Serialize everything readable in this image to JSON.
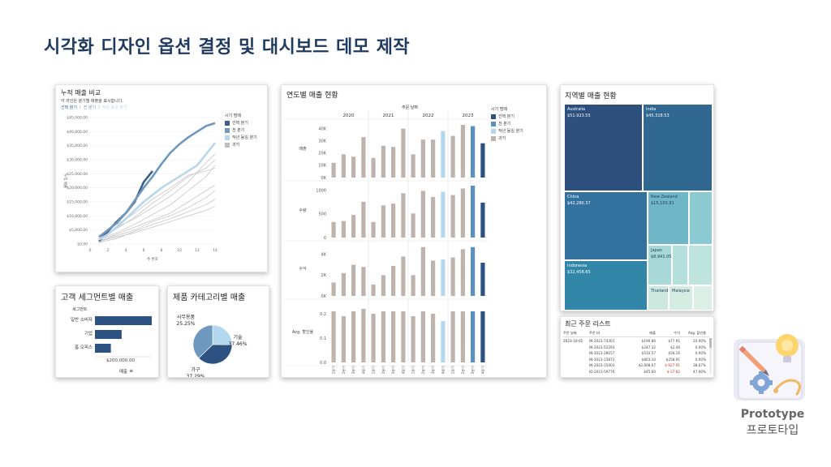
{
  "page": {
    "title": "시각화 디자인 옵션 결정 및 대시보드 데모 제작"
  },
  "cumulative": {
    "title": "누적 매출 비교",
    "subtitle": "각 라인은 분기별 매출을 표시합니다.",
    "tab_selected": "선택 분기",
    "tab_prev": "전 분기",
    "tab_yoy": "작년 동일 분기",
    "legend_title": "시기 범례",
    "legend": [
      {
        "label": "선택 분기",
        "color": "#3d5f85"
      },
      {
        "label": "전 분기",
        "color": "#6e98bd"
      },
      {
        "label": "작년 동일 분기",
        "color": "#b9d6ea"
      },
      {
        "label": "과거",
        "color": "#bdbdbd"
      }
    ],
    "ylabel": "누적 매출",
    "xlabel": "주 번호"
  },
  "yearly": {
    "title": "연도별 매출 현황",
    "header": "주문 날짜",
    "years": [
      "2020",
      "2021",
      "2022",
      "2023"
    ],
    "legend_title": "시기 범례",
    "legend": [
      {
        "label": "선택 분기",
        "color": "#2c5282"
      },
      {
        "label": "전 분기",
        "color": "#5d8fbf"
      },
      {
        "label": "작년 동일 분기",
        "color": "#b3d7ee"
      },
      {
        "label": "과거",
        "color": "#bfb3ad"
      }
    ],
    "x_quarters": [
      "1분기",
      "2분기",
      "3분기",
      "4분기"
    ]
  },
  "region": {
    "title": "지역별 매출 현황",
    "tiles": [
      {
        "name": "Australia",
        "value": "$51,923.55"
      },
      {
        "name": "India",
        "value": "$45,318.53"
      },
      {
        "name": "China",
        "value": "$42,280.37"
      },
      {
        "name": "New Zealand",
        "value": "$15,103.91"
      },
      {
        "name": "Japan",
        "value": "$8,941.05"
      },
      {
        "name": "Indonesia",
        "value": "$32,458.65"
      },
      {
        "name": "Thailand",
        "value": ""
      },
      {
        "name": "Malaysia",
        "value": ""
      }
    ]
  },
  "segment": {
    "title": "고객 세그먼트별 매출",
    "header": "세그먼트",
    "rows": [
      {
        "label": "일반 소비자",
        "value": 1.0
      },
      {
        "label": "기업",
        "value": 0.47
      },
      {
        "label": "홈 오피스",
        "value": 0.28
      }
    ],
    "axis_label": "$200,000.00",
    "footer": "매출"
  },
  "category": {
    "title": "제품 카테고리별 매출",
    "slices": [
      {
        "name": "사무용품",
        "pct": "25.25%"
      },
      {
        "name": "기술",
        "pct": "37.46%"
      },
      {
        "name": "가구",
        "pct": "37.29%"
      }
    ]
  },
  "orders": {
    "title": "최근 주문 리스트",
    "columns": [
      "주문 날짜",
      "주문 Id",
      "매출",
      "수익",
      "Avg. 할인율"
    ],
    "date": "2023-10-01",
    "rows": [
      {
        "id": "IN-2023-74301",
        "sales": "$190.86",
        "profit": "$77.91",
        "discount": "10.00%",
        "neg": false
      },
      {
        "id": "IN-2023-52293",
        "sales": "$247.32",
        "profit": "$2.46",
        "discount": "0.00%",
        "neg": false
      },
      {
        "id": "IN-2023-28157",
        "sales": "$510.57",
        "profit": "$56.16",
        "discount": "0.00%",
        "neg": false
      },
      {
        "id": "IN-2023-15872",
        "sales": "$803.10",
        "profit": "$258.91",
        "discount": "0.00%",
        "neg": false
      },
      {
        "id": "IN-2023-15403",
        "sales": "$2,608.07",
        "profit": "$-927.91",
        "discount": "38.67%",
        "neg": true
      },
      {
        "id": "ID-2023-59776",
        "sales": "$45.60",
        "profit": "$-37.82",
        "discount": "47.00%",
        "neg": true
      }
    ]
  },
  "proto": {
    "en": "Prototype",
    "ko": "프로토타입"
  },
  "chart_data": [
    {
      "type": "line",
      "title": "누적 매출 비교",
      "xlabel": "주 번호",
      "ylabel": "누적 매출",
      "xlim": [
        0,
        14
      ],
      "ylim": [
        0,
        45000
      ],
      "x_ticks": [
        "0",
        "2",
        "4",
        "6",
        "8",
        "10",
        "12",
        "14"
      ],
      "y_ticks": [
        "$0.00",
        "$5,000.00",
        "$10,000.00",
        "$15,000.00",
        "$20,000.00",
        "$25,000.00",
        "$30,000.00",
        "$35,000.00",
        "$40,000.00",
        "$45,000.00"
      ],
      "series": [
        {
          "name": "선택 분기",
          "x": [
            1,
            2,
            3,
            4,
            5,
            6,
            7
          ],
          "y": [
            1000,
            4500,
            8000,
            11000,
            15000,
            22000,
            26000
          ]
        },
        {
          "name": "전 분기",
          "x": [
            1,
            2,
            3,
            4,
            5,
            6,
            7,
            8,
            9,
            10,
            11,
            12,
            13,
            14
          ],
          "y": [
            2500,
            5000,
            7500,
            11000,
            15500,
            20000,
            24000,
            28500,
            32500,
            35500,
            38000,
            40000,
            42000,
            43000
          ]
        },
        {
          "name": "작년 동일 분기",
          "x": [
            1,
            2,
            3,
            4,
            5,
            6,
            7,
            8,
            9,
            10,
            11,
            12,
            13,
            14
          ],
          "y": [
            1500,
            3500,
            6000,
            9000,
            12000,
            15000,
            17500,
            20000,
            22000,
            24000,
            26000,
            28000,
            32000,
            36000
          ]
        },
        {
          "name": "과거",
          "x": [
            1,
            3,
            5,
            7,
            9,
            11,
            13,
            14
          ],
          "y": [
            2000,
            6000,
            9000,
            13000,
            17000,
            22000,
            29000,
            32000
          ]
        },
        {
          "name": "과거",
          "x": [
            1,
            3,
            5,
            7,
            9,
            11,
            13,
            14
          ],
          "y": [
            1500,
            4000,
            7000,
            10500,
            14000,
            19000,
            24000,
            28000
          ]
        },
        {
          "name": "과거",
          "x": [
            1,
            3,
            5,
            7,
            9,
            11,
            13,
            14
          ],
          "y": [
            800,
            3500,
            6000,
            8500,
            11000,
            15000,
            19000,
            21000
          ]
        },
        {
          "name": "과거",
          "x": [
            1,
            3,
            5,
            7,
            9,
            11,
            13,
            14
          ],
          "y": [
            2500,
            5500,
            9500,
            14500,
            19000,
            24000,
            27000,
            30000
          ]
        },
        {
          "name": "과거",
          "x": [
            1,
            3,
            5,
            7,
            9,
            11,
            13,
            14
          ],
          "y": [
            500,
            2000,
            4500,
            7000,
            9000,
            11500,
            14000,
            16000
          ]
        },
        {
          "name": "과거",
          "x": [
            1,
            3,
            5,
            7,
            9,
            11,
            13,
            14
          ],
          "y": [
            1200,
            3000,
            5000,
            8000,
            10000,
            13000,
            16500,
            19000
          ]
        },
        {
          "name": "과거",
          "x": [
            1,
            3,
            5,
            7,
            9,
            11,
            13,
            14
          ],
          "y": [
            3000,
            7000,
            11000,
            16000,
            20000,
            24500,
            26000,
            27000
          ]
        },
        {
          "name": "과거",
          "x": [
            1,
            3,
            5,
            7,
            9,
            11,
            13,
            14
          ],
          "y": [
            900,
            2500,
            4000,
            6000,
            8000,
            10000,
            12000,
            13500
          ]
        }
      ]
    },
    {
      "type": "bar",
      "title": "연도별 매출 현황",
      "x_header": "주문 날짜",
      "categories": [
        "2020 1분기",
        "2020 2분기",
        "2020 3분기",
        "2020 4분기",
        "2021 1분기",
        "2021 2분기",
        "2021 3분기",
        "2021 4분기",
        "2022 1분기",
        "2022 2분기",
        "2022 3분기",
        "2022 4분기",
        "2023 1분기",
        "2023 2분기",
        "2023 3분기",
        "2023 4분기"
      ],
      "period": [
        "과거",
        "과거",
        "과거",
        "과거",
        "과거",
        "과거",
        "과거",
        "과거",
        "과거",
        "과거",
        "과거",
        "작년 동일 분기",
        "과거",
        "과거",
        "전 분기",
        "선택 분기"
      ],
      "panels": [
        {
          "name": "매출",
          "ylim": [
            0,
            45000
          ],
          "ticks": [
            "0K",
            "10K",
            "20K",
            "30K",
            "40K"
          ],
          "tick_values": [
            0,
            10000,
            20000,
            30000,
            40000
          ],
          "values": [
            12000,
            19000,
            17000,
            33000,
            16000,
            26000,
            25000,
            40000,
            19000,
            31000,
            31000,
            38000,
            34000,
            43000,
            42000,
            28000
          ]
        },
        {
          "name": "수량",
          "ylim": [
            0,
            1100
          ],
          "ticks": [
            "0",
            "500",
            "1000"
          ],
          "tick_values": [
            0,
            500,
            1000
          ],
          "values": [
            330,
            350,
            480,
            760,
            330,
            680,
            720,
            940,
            510,
            990,
            860,
            970,
            900,
            1040,
            1100,
            740
          ]
        },
        {
          "name": "수익",
          "ylim": [
            0,
            5000
          ],
          "ticks": [
            "0K",
            "2K",
            "4K"
          ],
          "tick_values": [
            0,
            2000,
            4000
          ],
          "values": [
            1300,
            2200,
            3000,
            2800,
            1100,
            2000,
            2900,
            3800,
            2000,
            4700,
            3400,
            3500,
            3700,
            4500,
            4700,
            3200
          ]
        },
        {
          "name": "Avg. 할인율",
          "ylim": [
            0,
            0.24
          ],
          "ticks": [
            "0.0",
            "0.1",
            "0.2"
          ],
          "tick_values": [
            0,
            0.1,
            0.2
          ],
          "values": [
            0.21,
            0.19,
            0.21,
            0.22,
            0.2,
            0.21,
            0.21,
            0.21,
            0.19,
            0.21,
            0.2,
            0.17,
            0.21,
            0.21,
            0.21,
            0.21
          ]
        }
      ]
    },
    {
      "type": "treemap",
      "title": "지역별 매출 현황",
      "labels": [
        "Australia",
        "India",
        "China",
        "New Zealand",
        "Japan",
        "Indonesia",
        "Thailand",
        "Malaysia"
      ],
      "values": [
        51923.55,
        45318.53,
        42280.37,
        15103.91,
        8941.05,
        32458.65,
        6000,
        4500
      ]
    },
    {
      "type": "bar",
      "title": "고객 세그먼트별 매출",
      "orientation": "horizontal",
      "categories": [
        "일반 소비자",
        "기업",
        "홈 오피스"
      ],
      "values": [
        1.0,
        0.47,
        0.28
      ],
      "xlabel": "매출"
    },
    {
      "type": "pie",
      "title": "제품 카테고리별 매출",
      "labels": [
        "사무용품",
        "기술",
        "가구"
      ],
      "values": [
        25.25,
        37.46,
        37.29
      ]
    }
  ]
}
